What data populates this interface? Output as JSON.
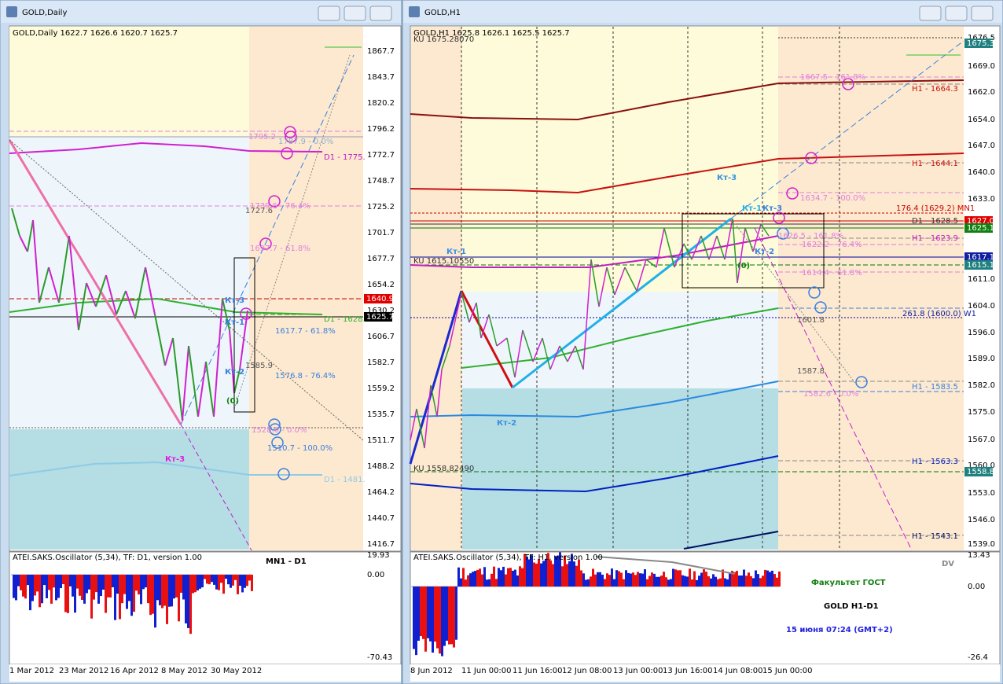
{
  "windows": [
    {
      "title": "GOLD,Daily",
      "info": "GOLD,Daily  1622.7 1626.6 1620.7 1625.7",
      "price_axis": [
        "1867.7",
        "1843.7",
        "1820.2",
        "1796.2",
        "1772.7",
        "1748.7",
        "1725.2",
        "1701.7",
        "1677.7",
        "1654.2",
        "1630.2",
        "1606.7",
        "1582.7",
        "1559.2",
        "1535.7",
        "1511.7",
        "1488.2",
        "1464.2",
        "1440.7",
        "1416.7"
      ],
      "price_markers": [
        "1640.9",
        "1625.7"
      ],
      "date_axis": [
        "1 Mar 2012",
        "23 Mar 2012",
        "16 Apr 2012",
        "8 May 2012",
        "30 May 2012"
      ],
      "oscillator": {
        "title": "ATEI.SAKS.Oscillator (5,34), TF: D1, version 1.00",
        "axis": [
          "19.93",
          "0.00",
          "-70.43"
        ]
      },
      "annotations": [
        "1795.2",
        "1787.9 - 0.0%",
        "D1 - 1775.",
        "1739.6 - 76.4%",
        "1727.6",
        "1697.7 - 61.8%",
        "Кт-3",
        "Кт-1",
        "D1 - 1628.",
        "1617.7 - 61.8%",
        "1585.9",
        "Кт-2",
        "1576.8 - 76.4%",
        "(0)",
        "1528.0 - 0.0%",
        "1510.7 - 100.0%",
        "D1 - 1481.",
        "Кт-3",
        "MN1 - D1"
      ]
    },
    {
      "title": "GOLD,H1",
      "info": "GOLD,H1  1625.8 1626.1 1625.5 1625.7",
      "price_axis": [
        "1676.5",
        "1669.0",
        "1662.0",
        "1654.0",
        "1647.0",
        "1640.0",
        "1633.0",
        "1611.0",
        "1604.0",
        "1596.0",
        "1589.0",
        "1582.0",
        "1575.0",
        "1567.0",
        "1560.0",
        "1553.0",
        "1546.0",
        "1539.0"
      ],
      "price_markers": [
        "1675.3",
        "1627.0",
        "1625.1",
        "1617.1",
        "1615.1",
        "1558.8"
      ],
      "date_axis": [
        "8 Jun 2012",
        "11 Jun 00:00",
        "11 Jun 16:00",
        "12 Jun 08:00",
        "13 Jun 00:00",
        "13 Jun 16:00",
        "14 Jun 08:00",
        "15 Jun 00:00"
      ],
      "oscillator": {
        "title": "ATEI.SAKS.Oscillator (5,34), TF: H1, version 1.00",
        "axis": [
          "13.43",
          "0.00",
          "-26.4"
        ]
      },
      "annotations": [
        "KU 1675.28070",
        "1667.5 - 161.8%",
        "H1 - 1664.3",
        "H1 - 1644.1",
        "Кт-3",
        "1634.7 - 100.0%",
        "176.4 (1629.2) MN1",
        "Кт-1",
        "Кт-3",
        "D1 - 1628.5",
        "1626.5 - 161.8%",
        "1622.2 - 76.4%",
        "H1 - 1623.9",
        "Кт-2",
        "Кт-1",
        "KU 1615.10550",
        "(0)",
        "1614.4 - 61.8%",
        "261.8 (1600.0) W1",
        "1601.8",
        "1587.8",
        "1582.6 - 0.0%",
        "H1 - 1583.5",
        "Кт-2",
        "H1 - 1563.3",
        "KU 1558.82490",
        "H1 - 1543.1",
        "DV",
        "Факультет ГОСТ",
        "GOLD   H1-D1",
        "15 июня 07:24  (GMT+2)"
      ]
    }
  ]
}
